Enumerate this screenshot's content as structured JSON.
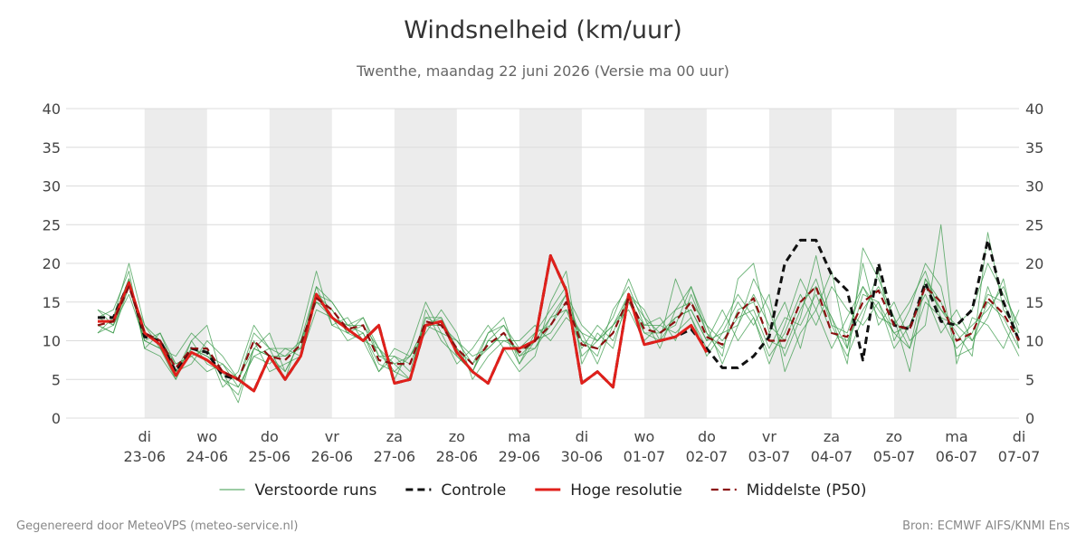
{
  "chart_data": {
    "type": "line",
    "title": "Windsnelheid (km/uur)",
    "subtitle": "Twenthe, maandag 22 juni 2026 (Versie ma 00 uur)",
    "footer_left": "Gegenereerd door MeteoVPS (meteo-service.nl)",
    "footer_right": "Bron: ECMWF AIFS/KNMI Ens",
    "categories": [
      null,
      null,
      null,
      "di 23-06",
      null,
      null,
      null,
      "wo 24-06",
      null,
      null,
      null,
      "do 25-06",
      null,
      null,
      null,
      "vr 26-06",
      null,
      null,
      null,
      "za 27-06",
      null,
      null,
      null,
      "zo 28-06",
      null,
      null,
      null,
      "ma 29-06",
      null,
      null,
      null,
      "di 30-06",
      null,
      null,
      null,
      "wo 01-07",
      null,
      null,
      null,
      "do 02-07",
      null,
      null,
      null,
      "vr 03-07",
      null,
      null,
      null,
      "za 04-07",
      null,
      null,
      null,
      "zo 05-07",
      null,
      null,
      null,
      "ma 06-07",
      null,
      null,
      null,
      "di 07-07"
    ],
    "ylim": [
      0,
      40
    ],
    "yticks": [
      0,
      5,
      10,
      15,
      20,
      25,
      30,
      35,
      40
    ],
    "grid": true,
    "legend": "bottom",
    "series": [
      {
        "name": "Verstoorde runs",
        "color": "#3a9a4a",
        "runs": [
          [
            13,
            14,
            19,
            9,
            8,
            5,
            10,
            12,
            5,
            3,
            9,
            11,
            6,
            10,
            17,
            15,
            12,
            13,
            9,
            6,
            5,
            14,
            10,
            8,
            6,
            11,
            13,
            7,
            11,
            14,
            17,
            8,
            10,
            13,
            18,
            13,
            9,
            14,
            17,
            12,
            7,
            12,
            18,
            14,
            8,
            13,
            21,
            12,
            8,
            13,
            19,
            10,
            14,
            20,
            17,
            8,
            9,
            17,
            12,
            8
          ],
          [
            11,
            12,
            16,
            10,
            11,
            7,
            8,
            6,
            7,
            4,
            8,
            7,
            9,
            8,
            14,
            13,
            10,
            11,
            6,
            9,
            8,
            11,
            14,
            11,
            5,
            8,
            10,
            10,
            12,
            10,
            13,
            11,
            7,
            12,
            14,
            10,
            12,
            11,
            13,
            9,
            12,
            16,
            13,
            7,
            12,
            18,
            14,
            9,
            13,
            17,
            14,
            11,
            9,
            15,
            13,
            12,
            14,
            20,
            16,
            12
          ],
          [
            14,
            13,
            20,
            12,
            9,
            8,
            11,
            9,
            4,
            6,
            12,
            9,
            5,
            11,
            19,
            12,
            13,
            10,
            9,
            5,
            9,
            15,
            11,
            7,
            9,
            12,
            9,
            6,
            8,
            15,
            19,
            7,
            11,
            9,
            16,
            14,
            10,
            18,
            13,
            8,
            11,
            15,
            12,
            16,
            6,
            11,
            14,
            19,
            9,
            20,
            12,
            15,
            10,
            12,
            25,
            7,
            13,
            12,
            9,
            14
          ],
          [
            12,
            11,
            18,
            11,
            10,
            6,
            7,
            10,
            8,
            5,
            11,
            9,
            8,
            9,
            16,
            14,
            11,
            13,
            8,
            8,
            6,
            13,
            13,
            9,
            6,
            10,
            12,
            9,
            9,
            13,
            16,
            10,
            8,
            14,
            17,
            12,
            13,
            10,
            16,
            11,
            8,
            18,
            20,
            11,
            15,
            9,
            17,
            13,
            7,
            22,
            18,
            13,
            6,
            18,
            14,
            11,
            8,
            24,
            14,
            11
          ],
          [
            13,
            12,
            17,
            10,
            9,
            5,
            9,
            8,
            6,
            2,
            9,
            8,
            6,
            10,
            15,
            13,
            12,
            11,
            7,
            6,
            8,
            12,
            11,
            10,
            8,
            9,
            11,
            7,
            10,
            11,
            14,
            9,
            12,
            10,
            15,
            11,
            10,
            13,
            14,
            10,
            14,
            10,
            13,
            8,
            11,
            16,
            12,
            17,
            14,
            12,
            15,
            9,
            12,
            16,
            11,
            14,
            10,
            13,
            18,
            9
          ],
          [
            11,
            13,
            18,
            9,
            11,
            6,
            10,
            7,
            6,
            5,
            10,
            6,
            7,
            8,
            16,
            15,
            12,
            12,
            8,
            7,
            5,
            13,
            12,
            9,
            7,
            11,
            12,
            8,
            9,
            12,
            15,
            10,
            9,
            11,
            16,
            13,
            11,
            12,
            17,
            11,
            9,
            14,
            15,
            10,
            9,
            14,
            18,
            12,
            11,
            17,
            13,
            12,
            15,
            19,
            13,
            9,
            11,
            16,
            15,
            10
          ],
          [
            12,
            11,
            17,
            12,
            10,
            7,
            8,
            9,
            5,
            4,
            8,
            9,
            9,
            9,
            17,
            12,
            11,
            10,
            6,
            8,
            7,
            12,
            13,
            8,
            6,
            10,
            10,
            9,
            11,
            12,
            16,
            12,
            10,
            12,
            15,
            12,
            12,
            14,
            15,
            12,
            10,
            13,
            14,
            9,
            13,
            12,
            16,
            11,
            10,
            14,
            17,
            13,
            9,
            18,
            15,
            10,
            12,
            14,
            17,
            11
          ],
          [
            14,
            12,
            18,
            10,
            9,
            6,
            9,
            8,
            7,
            5,
            9,
            8,
            8,
            10,
            15,
            14,
            11,
            12,
            9,
            7,
            8,
            12,
            12,
            10,
            7,
            9,
            11,
            8,
            10,
            13,
            14,
            11,
            10,
            12,
            16,
            11,
            11,
            13,
            14,
            10,
            11,
            12,
            16,
            12,
            10,
            15,
            17,
            13,
            9,
            16,
            15,
            11,
            12,
            17,
            14,
            12,
            10,
            15,
            13,
            9
          ]
        ]
      },
      {
        "name": "Controle",
        "color": "#111111",
        "dashed": true,
        "values": [
          13,
          13,
          17.5,
          10.5,
          10,
          6,
          9,
          8.5,
          5.5,
          5,
          3.5,
          8,
          5,
          8,
          16,
          13,
          11.5,
          10,
          12,
          4.5,
          5,
          12,
          12.5,
          8.5,
          6,
          4.5,
          9,
          9,
          10,
          21,
          16.5,
          4.5,
          6,
          4,
          16,
          9.5,
          10,
          10.5,
          11.5,
          9,
          6.5,
          6.5,
          8,
          10.5,
          20,
          23,
          23,
          18.5,
          16.5,
          7.5,
          20,
          12,
          11.5,
          17.5,
          12.5,
          12,
          14,
          23,
          15,
          10
        ]
      },
      {
        "name": "Hoge resolutie",
        "color": "#e0201b",
        "values": [
          12.5,
          12.5,
          17.5,
          11,
          9.5,
          5.5,
          8.5,
          7.5,
          6,
          5,
          3.5,
          8,
          5,
          8,
          16,
          13,
          11.5,
          10,
          12,
          4.5,
          5,
          12,
          12.5,
          8.5,
          6,
          4.5,
          9,
          9,
          10,
          21,
          16.5,
          4.5,
          6,
          4,
          16,
          9.5,
          10,
          10.5,
          12,
          8.5,
          null,
          null,
          null,
          null,
          null,
          null,
          null,
          null,
          null,
          null,
          null,
          null,
          null,
          null,
          null,
          null,
          null,
          null,
          null,
          null
        ]
      },
      {
        "name": "Middelste (P50)",
        "color": "#8b1010",
        "dashed": true,
        "values": [
          12,
          12.5,
          17,
          11,
          10,
          6.5,
          9,
          9,
          6,
          5,
          10,
          8,
          7.5,
          9.5,
          15.5,
          14,
          11.5,
          12,
          7.5,
          7,
          7,
          12.5,
          12,
          9,
          7,
          9.5,
          11,
          8.5,
          10,
          12,
          15,
          9.5,
          9,
          11,
          15.5,
          11.5,
          11,
          12.5,
          15,
          10.5,
          9.5,
          13.5,
          15.5,
          10,
          10,
          15,
          17,
          11,
          10.5,
          15,
          16.5,
          12,
          11.5,
          17,
          15,
          10,
          11,
          15.5,
          13.5,
          10
        ]
      }
    ]
  }
}
